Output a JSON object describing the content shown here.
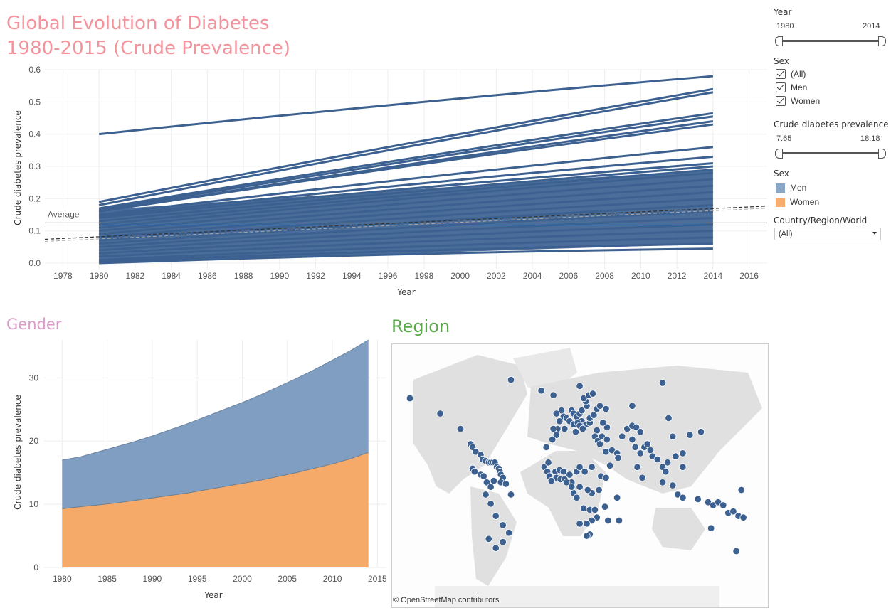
{
  "dashboard": {
    "title_line1": "Global Evolution of Diabetes",
    "title_line2": "1980-2015 (Crude Prevalence)",
    "gender_title": "Gender",
    "region_title": "Region",
    "map_attribution": "© OpenStreetMap contributors"
  },
  "filters": {
    "year": {
      "label": "Year",
      "min": "1980",
      "max": "2014"
    },
    "sex": {
      "label": "Sex",
      "options": [
        "(All)",
        "Men",
        "Women"
      ],
      "checked": [
        true,
        true,
        true
      ]
    },
    "prevalence": {
      "label": "Crude diabetes prevalence",
      "min": "7.65",
      "max": "18.18"
    },
    "sex_legend": {
      "label": "Sex",
      "items": [
        {
          "name": "Men",
          "color": "#8aa6c6"
        },
        {
          "name": "Women",
          "color": "#f7ad6e"
        }
      ]
    },
    "region": {
      "label": "Country/Region/World",
      "value": "(All)"
    }
  },
  "colors": {
    "line": "#3c6191",
    "men_area": "#7f9ec1",
    "women_area": "#f5aa6a",
    "title": "#f4939c",
    "gender_title": "#d89cc7",
    "region_title": "#5aa84a",
    "map_dot": "#3c6191",
    "land": "#e0e0e0"
  },
  "chart_data": [
    {
      "type": "line",
      "xlabel": "Year",
      "ylabel": "Crude diabetes prevalence",
      "xlim": [
        1977,
        2017
      ],
      "ylim": [
        0,
        0.6
      ],
      "x_ticks": [
        1978,
        1980,
        1982,
        1984,
        1986,
        1988,
        1990,
        1992,
        1994,
        1996,
        1998,
        2000,
        2002,
        2004,
        2006,
        2008,
        2010,
        2012,
        2014,
        2016
      ],
      "y_ticks": [
        "0.0",
        "0.1",
        "0.2",
        "0.3",
        "0.4",
        "0.5",
        "0.6"
      ],
      "x": [
        1980,
        2014
      ],
      "series": [
        {
          "values": [
            0.4,
            0.58
          ]
        },
        {
          "values": [
            0.19,
            0.54
          ]
        },
        {
          "values": [
            0.18,
            0.53
          ]
        },
        {
          "values": [
            0.17,
            0.465
          ]
        },
        {
          "values": [
            0.165,
            0.455
          ]
        },
        {
          "values": [
            0.16,
            0.44
          ]
        },
        {
          "values": [
            0.16,
            0.43
          ]
        },
        {
          "values": [
            0.15,
            0.36
          ]
        },
        {
          "values": [
            0.145,
            0.33
          ]
        },
        {
          "values": [
            0.14,
            0.31
          ]
        },
        {
          "values": [
            0.13,
            0.3
          ]
        },
        {
          "values": [
            0.12,
            0.29
          ]
        },
        {
          "values": [
            0.11,
            0.28
          ]
        },
        {
          "values": [
            0.1,
            0.26
          ]
        },
        {
          "values": [
            0.09,
            0.24
          ]
        },
        {
          "values": [
            0.08,
            0.22
          ]
        },
        {
          "values": [
            0.07,
            0.2
          ]
        },
        {
          "values": [
            0.06,
            0.18
          ]
        },
        {
          "values": [
            0.05,
            0.16
          ]
        },
        {
          "values": [
            0.04,
            0.14
          ]
        },
        {
          "values": [
            0.03,
            0.12
          ]
        },
        {
          "values": [
            0.02,
            0.1
          ]
        },
        {
          "values": [
            0.01,
            0.08
          ]
        },
        {
          "values": [
            0.005,
            0.06
          ]
        },
        {
          "values": [
            0.0,
            0.045
          ]
        }
      ],
      "average": {
        "label": "Average",
        "value": 0.125
      },
      "trend": [
        0.074,
        0.177
      ]
    },
    {
      "type": "area",
      "xlabel": "Year",
      "ylabel": "Crude diabetes prevalence",
      "xlim": [
        1978,
        2016
      ],
      "ylim": [
        0,
        36
      ],
      "x_ticks": [
        1980,
        1985,
        1990,
        1995,
        2000,
        2005,
        2010,
        2015
      ],
      "y_ticks": [
        0,
        10,
        20,
        30
      ],
      "x": [
        1980,
        1982,
        1984,
        1986,
        1988,
        1990,
        1992,
        1994,
        1996,
        1998,
        2000,
        2002,
        2004,
        2006,
        2008,
        2010,
        2012,
        2014
      ],
      "series": [
        {
          "name": "Women",
          "values": [
            9.3,
            9.6,
            9.9,
            10.2,
            10.6,
            11.0,
            11.4,
            11.8,
            12.3,
            12.8,
            13.3,
            13.8,
            14.4,
            15.0,
            15.7,
            16.4,
            17.2,
            18.2
          ]
        },
        {
          "name": "Men",
          "values": [
            17.0,
            17.5,
            18.3,
            19.1,
            19.9,
            20.8,
            21.8,
            22.8,
            23.9,
            25.0,
            26.1,
            27.3,
            28.6,
            29.9,
            31.3,
            32.8,
            34.3,
            36.0
          ]
        }
      ]
    }
  ],
  "map": {
    "type": "symbol_map",
    "dots": [
      [
        -150,
        60
      ],
      [
        -120,
        50
      ],
      [
        -100,
        40
      ],
      [
        -90,
        30
      ],
      [
        -88,
        28
      ],
      [
        -85,
        25
      ],
      [
        -80,
        23
      ],
      [
        -78,
        20
      ],
      [
        -75,
        19
      ],
      [
        -72,
        18
      ],
      [
        -70,
        18
      ],
      [
        -68,
        18
      ],
      [
        -66,
        18
      ],
      [
        -64,
        15
      ],
      [
        -62,
        14
      ],
      [
        -61,
        12
      ],
      [
        -60,
        10
      ],
      [
        -58,
        8
      ],
      [
        -80,
        10
      ],
      [
        -77,
        9
      ],
      [
        -74,
        5
      ],
      [
        -70,
        2
      ],
      [
        -67,
        6
      ],
      [
        -75,
        -3
      ],
      [
        -70,
        -9
      ],
      [
        -50,
        -3
      ],
      [
        -65,
        -17
      ],
      [
        -58,
        -23
      ],
      [
        -72,
        -32
      ],
      [
        -65,
        -38
      ],
      [
        -58,
        -34
      ],
      [
        -52,
        -28
      ],
      [
        -60,
        5
      ],
      [
        -55,
        4
      ],
      [
        -88,
        14
      ],
      [
        -86,
        12
      ],
      [
        -20,
        65
      ],
      [
        -8,
        62
      ],
      [
        0,
        52
      ],
      [
        -5,
        50
      ],
      [
        2,
        48
      ],
      [
        -2,
        45
      ],
      [
        5,
        47
      ],
      [
        10,
        52
      ],
      [
        12,
        50
      ],
      [
        15,
        48
      ],
      [
        18,
        50
      ],
      [
        20,
        52
      ],
      [
        25,
        55
      ],
      [
        24,
        58
      ],
      [
        22,
        60
      ],
      [
        27,
        62
      ],
      [
        20,
        45
      ],
      [
        22,
        42
      ],
      [
        25,
        43
      ],
      [
        28,
        44
      ],
      [
        8,
        45
      ],
      [
        12,
        43
      ],
      [
        16,
        44
      ],
      [
        18,
        42
      ],
      [
        21,
        40
      ],
      [
        14,
        38
      ],
      [
        3,
        40
      ],
      [
        -4,
        40
      ],
      [
        -8,
        40
      ],
      [
        -5,
        36
      ],
      [
        28,
        47
      ],
      [
        32,
        49
      ],
      [
        35,
        53
      ],
      [
        38,
        55
      ],
      [
        44,
        53
      ],
      [
        35,
        39
      ],
      [
        33,
        35
      ],
      [
        36,
        32
      ],
      [
        38,
        30
      ],
      [
        40,
        35
      ],
      [
        45,
        33
      ],
      [
        44,
        25
      ],
      [
        50,
        26
      ],
      [
        55,
        24
      ],
      [
        56,
        21
      ],
      [
        48,
        16
      ],
      [
        60,
        35
      ],
      [
        65,
        40
      ],
      [
        70,
        42
      ],
      [
        74,
        41
      ],
      [
        78,
        38
      ],
      [
        70,
        33
      ],
      [
        73,
        28
      ],
      [
        78,
        24
      ],
      [
        82,
        28
      ],
      [
        88,
        26
      ],
      [
        90,
        22
      ],
      [
        85,
        30
      ],
      [
        75,
        15
      ],
      [
        80,
        8
      ],
      [
        95,
        20
      ],
      [
        100,
        15
      ],
      [
        103,
        12
      ],
      [
        105,
        18
      ],
      [
        100,
        5
      ],
      [
        110,
        3
      ],
      [
        113,
        22
      ],
      [
        120,
        24
      ],
      [
        127,
        36
      ],
      [
        138,
        38
      ],
      [
        106,
        47
      ],
      [
        110,
        35
      ],
      [
        120,
        15
      ],
      [
        115,
        -3
      ],
      [
        120,
        -5
      ],
      [
        135,
        -6
      ],
      [
        145,
        -8
      ],
      [
        150,
        -10
      ],
      [
        155,
        -8
      ],
      [
        160,
        -10
      ],
      [
        165,
        -15
      ],
      [
        170,
        -14
      ],
      [
        175,
        -17
      ],
      [
        180,
        -18
      ],
      [
        148,
        -25
      ],
      [
        173,
        -40
      ],
      [
        178,
        0
      ],
      [
        -9,
        33
      ],
      [
        -15,
        28
      ],
      [
        -17,
        15
      ],
      [
        -14,
        12
      ],
      [
        -12,
        9
      ],
      [
        -6,
        12
      ],
      [
        -2,
        13
      ],
      [
        2,
        12
      ],
      [
        -5,
        8
      ],
      [
        -1,
        7
      ],
      [
        3,
        7
      ],
      [
        8,
        10
      ],
      [
        10,
        5
      ],
      [
        15,
        12
      ],
      [
        18,
        15
      ],
      [
        23,
        12
      ],
      [
        30,
        15
      ],
      [
        39,
        9
      ],
      [
        44,
        8
      ],
      [
        37,
        0
      ],
      [
        30,
        -2
      ],
      [
        26,
        0
      ],
      [
        18,
        2
      ],
      [
        12,
        -2
      ],
      [
        15,
        -5
      ],
      [
        22,
        -12
      ],
      [
        28,
        -13
      ],
      [
        33,
        -13
      ],
      [
        35,
        -18
      ],
      [
        30,
        -20
      ],
      [
        25,
        -22
      ],
      [
        18,
        -22
      ],
      [
        28,
        -29
      ],
      [
        25,
        -30
      ],
      [
        46,
        -20
      ],
      [
        57,
        -20
      ],
      [
        55,
        -5
      ],
      [
        43,
        -11
      ],
      [
        10,
        2
      ],
      [
        5,
        5
      ],
      [
        -10,
        6
      ],
      [
        -13,
        18
      ],
      [
        31,
        63
      ],
      [
        18,
        68
      ],
      [
        -50,
        72
      ],
      [
        100,
        70
      ],
      [
        45,
        41
      ],
      [
        41,
        44
      ],
      [
        70,
        55
      ]
    ]
  }
}
